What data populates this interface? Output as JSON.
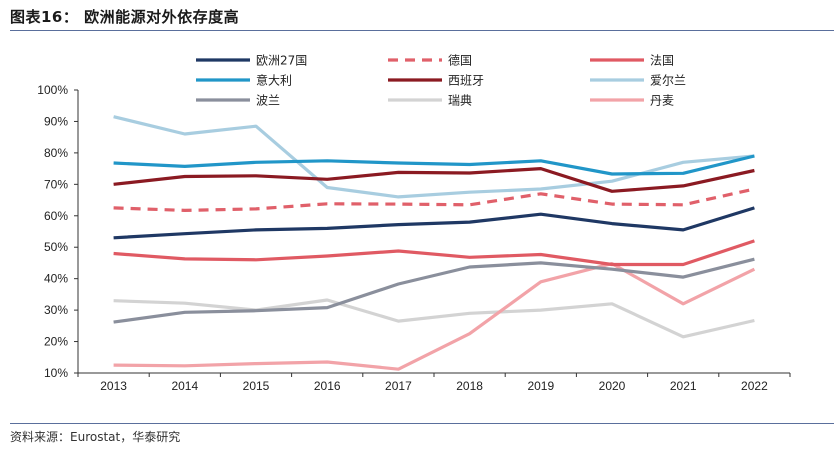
{
  "figure": {
    "title": "图表16： 欧洲能源对外依存度高",
    "source": "资料来源：Eurostat，华泰研究"
  },
  "chart_data": {
    "type": "line",
    "title": "欧洲能源对外依存度高",
    "xlabel": "",
    "ylabel": "",
    "categories": [
      "2013",
      "2014",
      "2015",
      "2016",
      "2017",
      "2018",
      "2019",
      "2020",
      "2021",
      "2022"
    ],
    "ylim": [
      0.1,
      1.0
    ],
    "y_ticks": [
      {
        "value": 0.1,
        "label": "10%"
      },
      {
        "value": 0.2,
        "label": "20%"
      },
      {
        "value": 0.3,
        "label": "30%"
      },
      {
        "value": 0.4,
        "label": "40%"
      },
      {
        "value": 0.5,
        "label": "50%"
      },
      {
        "value": 0.6,
        "label": "60%"
      },
      {
        "value": 0.7,
        "label": "70%"
      },
      {
        "value": 0.8,
        "label": "80%"
      },
      {
        "value": 0.9,
        "label": "90%"
      },
      {
        "value": 1.0,
        "label": "100%"
      }
    ],
    "grid": false,
    "legend_position": "top",
    "series": [
      {
        "name": "欧洲27国",
        "color": "#1f3864",
        "dashed": false,
        "values": [
          0.53,
          0.543,
          0.555,
          0.56,
          0.572,
          0.58,
          0.605,
          0.575,
          0.555,
          0.625
        ]
      },
      {
        "name": "德国",
        "color": "#e0606a",
        "dashed": true,
        "values": [
          0.625,
          0.617,
          0.622,
          0.638,
          0.637,
          0.635,
          0.67,
          0.637,
          0.635,
          0.685
        ]
      },
      {
        "name": "法国",
        "color": "#e05a63",
        "dashed": false,
        "values": [
          0.48,
          0.463,
          0.46,
          0.472,
          0.488,
          0.468,
          0.477,
          0.445,
          0.445,
          0.52
        ]
      },
      {
        "name": "意大利",
        "color": "#2196c8",
        "dashed": false,
        "values": [
          0.768,
          0.757,
          0.77,
          0.775,
          0.768,
          0.763,
          0.775,
          0.733,
          0.735,
          0.79
        ]
      },
      {
        "name": "西班牙",
        "color": "#8b1a22",
        "dashed": false,
        "values": [
          0.7,
          0.725,
          0.727,
          0.716,
          0.738,
          0.736,
          0.75,
          0.678,
          0.695,
          0.744
        ]
      },
      {
        "name": "爱尔兰",
        "color": "#a8cde0",
        "dashed": false,
        "values": [
          0.915,
          0.86,
          0.885,
          0.69,
          0.66,
          0.675,
          0.685,
          0.71,
          0.77,
          0.79
        ]
      },
      {
        "name": "波兰",
        "color": "#8a8f9c",
        "dashed": false,
        "values": [
          0.262,
          0.293,
          0.298,
          0.308,
          0.383,
          0.437,
          0.45,
          0.43,
          0.405,
          0.462
        ]
      },
      {
        "name": "瑞典",
        "color": "#d3d3d3",
        "dashed": false,
        "values": [
          0.33,
          0.322,
          0.3,
          0.332,
          0.265,
          0.29,
          0.3,
          0.32,
          0.215,
          0.267
        ]
      },
      {
        "name": "丹麦",
        "color": "#f2a3a8",
        "dashed": false,
        "values": [
          0.125,
          0.123,
          0.13,
          0.135,
          0.112,
          0.225,
          0.39,
          0.448,
          0.32,
          0.43
        ]
      }
    ]
  }
}
